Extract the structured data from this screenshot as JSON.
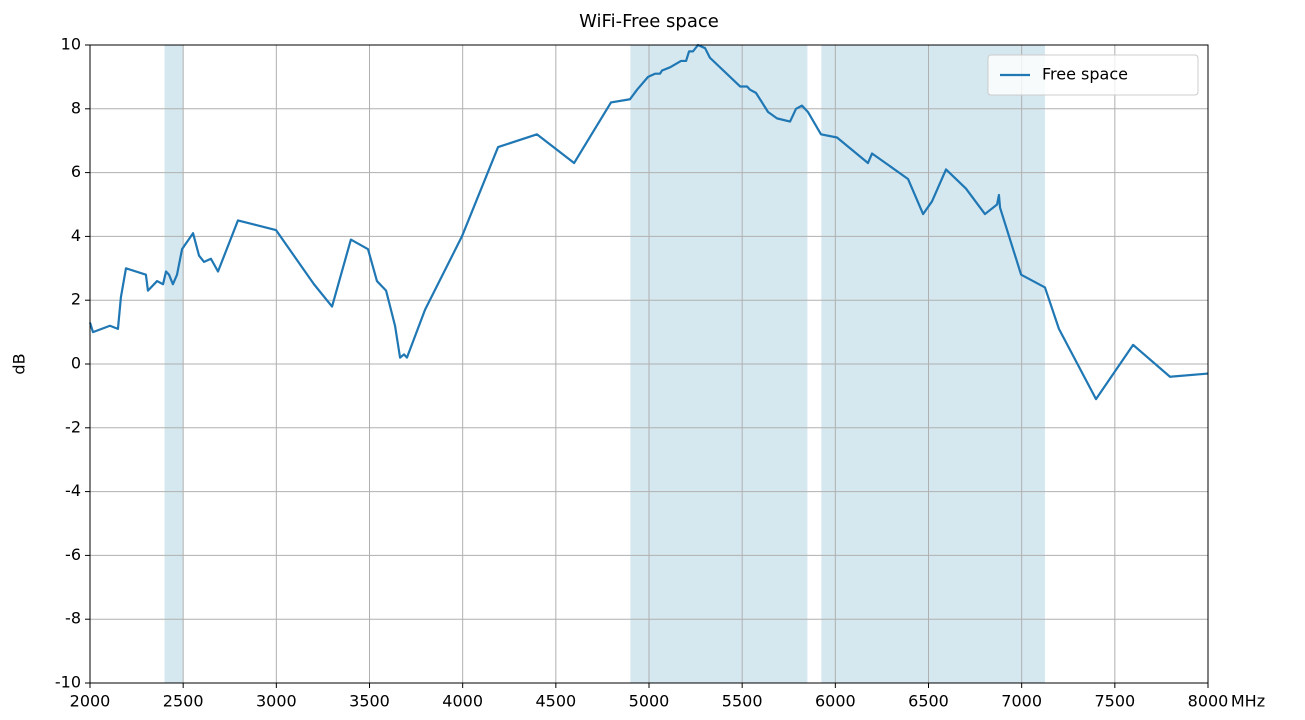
{
  "chart_data": {
    "type": "line",
    "title": "WiFi-Free space",
    "xlabel": "MHz",
    "ylabel": "dB",
    "xlim": [
      2000,
      8000
    ],
    "ylim": [
      -10,
      10
    ],
    "xticks": [
      2000,
      2500,
      3000,
      3500,
      4000,
      4500,
      5000,
      5500,
      6000,
      6500,
      7000,
      7500,
      8000
    ],
    "yticks": [
      -10,
      -8,
      -6,
      -4,
      -2,
      0,
      2,
      4,
      6,
      8,
      10
    ],
    "grid": true,
    "legend": "upper right",
    "bands": [
      [
        2400,
        2500
      ],
      [
        4900,
        5850
      ],
      [
        5925,
        7125
      ]
    ],
    "band_color": "#d5e8f0",
    "series": [
      {
        "name": "Free space",
        "color": "#1f77b4",
        "x": [
          2000,
          2016,
          2107,
          2150,
          2166,
          2193,
          2300,
          2311,
          2360,
          2392,
          2408,
          2424,
          2445,
          2467,
          2494,
          2553,
          2585,
          2612,
          2649,
          2687,
          2794,
          2998,
          3202,
          3299,
          3400,
          3492,
          3540,
          3589,
          3637,
          3664,
          3685,
          3701,
          3798,
          3996,
          4190,
          4399,
          4598,
          4796,
          4898,
          4936,
          4995,
          5032,
          5059,
          5070,
          5113,
          5172,
          5199,
          5215,
          5236,
          5263,
          5301,
          5327,
          5489,
          5526,
          5542,
          5574,
          5639,
          5687,
          5757,
          5789,
          5821,
          5853,
          5923,
          6009,
          6175,
          6197,
          6390,
          6471,
          6519,
          6594,
          6701,
          6803,
          6868,
          6878,
          6884,
          6997,
          7125,
          7200,
          7399,
          7598,
          7796,
          8000
        ],
        "values": [
          1.3,
          1.0,
          1.2,
          1.1,
          2.1,
          3.0,
          2.8,
          2.3,
          2.6,
          2.5,
          2.9,
          2.8,
          2.5,
          2.8,
          3.6,
          4.1,
          3.4,
          3.2,
          3.3,
          2.9,
          4.5,
          4.2,
          2.5,
          1.8,
          3.9,
          3.6,
          2.6,
          2.3,
          1.2,
          0.2,
          0.3,
          0.2,
          1.7,
          4.0,
          6.8,
          7.2,
          6.3,
          8.2,
          8.3,
          8.6,
          9.0,
          9.1,
          9.1,
          9.2,
          9.3,
          9.5,
          9.5,
          9.8,
          9.8,
          10.0,
          9.9,
          9.6,
          8.7,
          8.7,
          8.6,
          8.5,
          7.9,
          7.7,
          7.6,
          8.0,
          8.1,
          7.9,
          7.2,
          7.1,
          6.3,
          6.6,
          5.8,
          4.7,
          5.1,
          6.1,
          5.5,
          4.7,
          5.0,
          5.3,
          4.9,
          2.8,
          2.4,
          1.1,
          -1.1,
          0.6,
          -0.4,
          -0.3
        ]
      }
    ]
  }
}
